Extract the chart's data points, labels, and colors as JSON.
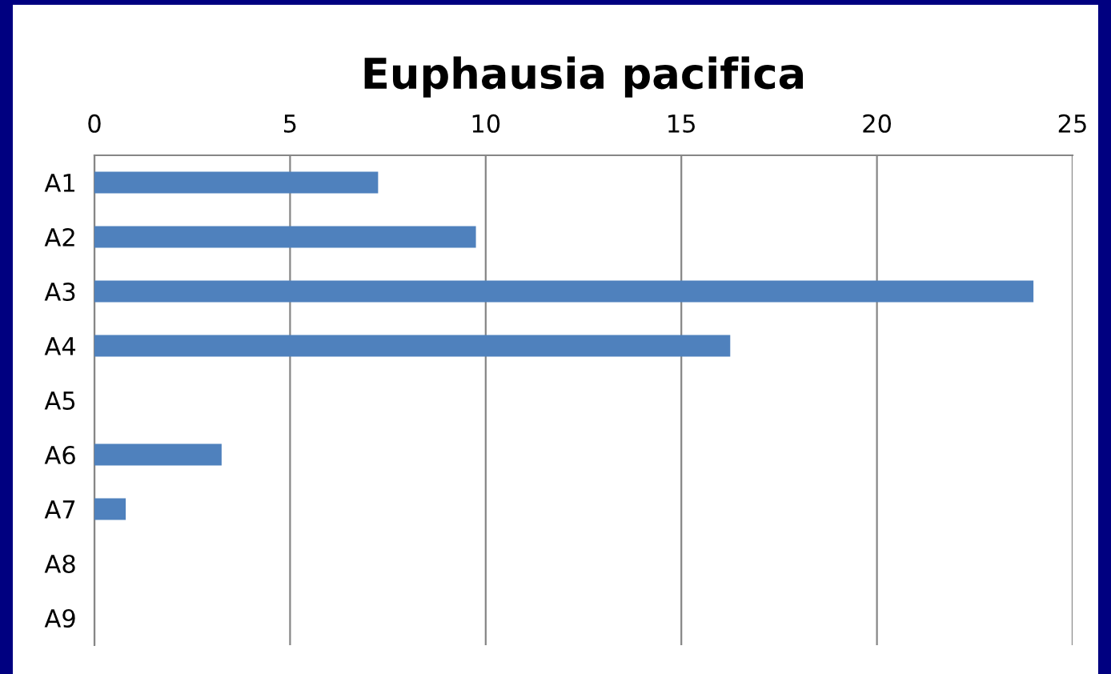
{
  "chart_data": {
    "type": "bar",
    "title": "Euphausia pacifica",
    "orientation": "horizontal",
    "categories": [
      "A1",
      "A2",
      "A3",
      "A4",
      "A5",
      "A6",
      "A7",
      "A8",
      "A9"
    ],
    "values": [
      7.25,
      9.75,
      24.0,
      16.25,
      0,
      3.25,
      0.8,
      0,
      0
    ],
    "color": "#4f81bd",
    "xlim": [
      0,
      25
    ],
    "xticks": [
      0,
      5,
      10,
      15,
      20,
      25
    ],
    "grid": "x",
    "legend": false
  }
}
